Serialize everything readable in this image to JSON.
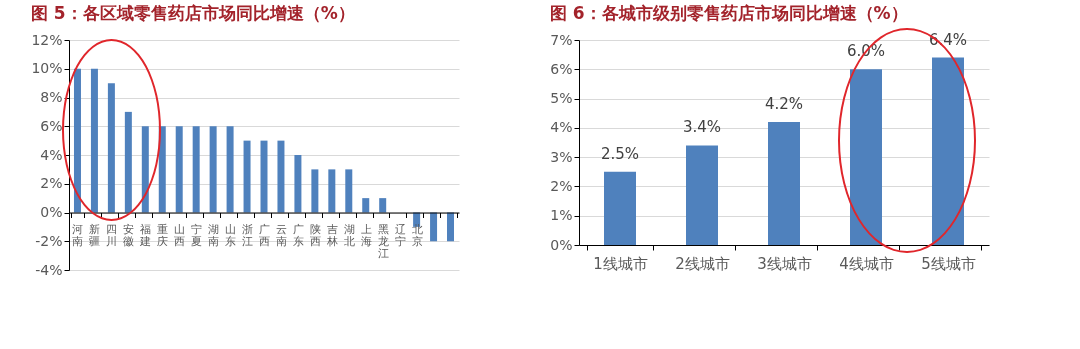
{
  "chart_data": [
    {
      "type": "bar",
      "title": "图 5：各区域零售药店市场同比增速（%）",
      "categories": [
        "河南",
        "新疆",
        "四川",
        "安徽",
        "福建",
        "重庆",
        "山西",
        "宁夏",
        "湖南",
        "山东",
        "浙江",
        "广西",
        "云南",
        "广东",
        "陕西",
        "吉林",
        "湖北",
        "上海",
        "黑龙江",
        "辽宁",
        "北京",
        null,
        null
      ],
      "values": [
        10,
        10,
        9,
        7,
        6,
        6,
        6,
        6,
        6,
        6,
        5,
        5,
        5,
        4,
        3,
        3,
        3,
        1,
        1,
        0,
        -1,
        -2,
        -2
      ],
      "color": "#4f81bd",
      "ylim": [
        -4,
        12
      ],
      "yticks": [
        {
          "value": -4,
          "label": "-4%"
        },
        {
          "value": -2,
          "label": "-2%"
        },
        {
          "value": 0,
          "label": "0%"
        },
        {
          "value": 2,
          "label": "2%"
        },
        {
          "value": 4,
          "label": "4%"
        },
        {
          "value": 6,
          "label": "6%"
        },
        {
          "value": 8,
          "label": "8%"
        },
        {
          "value": 10,
          "label": "10%"
        },
        {
          "value": 12,
          "label": "12%"
        }
      ],
      "grid": "y"
    },
    {
      "type": "bar",
      "title": "图 6：各城市级别零售药店市场同比增速（%）",
      "categories": [
        "1线城市",
        "2线城市",
        "3线城市",
        "4线城市",
        "5线城市"
      ],
      "values": [
        2.5,
        3.4,
        4.2,
        6.0,
        6.4
      ],
      "value_labels": [
        "2.5%",
        "3.4%",
        "4.2%",
        "6.0%",
        "6.4%"
      ],
      "color": "#4f81bd",
      "ylim": [
        0,
        7
      ],
      "yticks": [
        {
          "value": 0,
          "label": "0%"
        },
        {
          "value": 1,
          "label": "1%"
        },
        {
          "value": 2,
          "label": "2%"
        },
        {
          "value": 3,
          "label": "3%"
        },
        {
          "value": 4,
          "label": "4%"
        },
        {
          "value": 5,
          "label": "5%"
        },
        {
          "value": 6,
          "label": "6%"
        },
        {
          "value": 7,
          "label": "7%"
        }
      ],
      "grid": "y"
    }
  ]
}
